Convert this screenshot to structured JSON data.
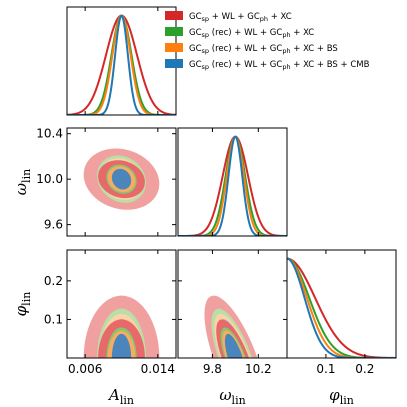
{
  "chart_data": {
    "type": "triangle-corner",
    "parameters": [
      {
        "key": "A",
        "symbol": "A",
        "subscript": "lin",
        "range": [
          0.004,
          0.016
        ],
        "ticks": [
          0.006,
          0.014
        ],
        "tick_labels": [
          "0.006",
          "0.014"
        ]
      },
      {
        "key": "omega",
        "symbol": "ω",
        "subscript": "lin",
        "range": [
          9.5,
          10.45
        ],
        "ticks": [
          9.8,
          10.2
        ],
        "tick_labels": [
          "9.8",
          "10.2"
        ],
        "y_ticks": [
          9.6,
          10.0,
          10.4
        ],
        "y_tick_labels": [
          "9.6",
          "10.0",
          "10.4"
        ]
      },
      {
        "key": "phi",
        "symbol": "φ",
        "subscript": "lin",
        "range": [
          0.0,
          0.28
        ],
        "ticks": [
          0.1,
          0.2
        ],
        "tick_labels": [
          "0.1",
          "0.2"
        ],
        "y_ticks": [
          0.1,
          0.2
        ],
        "y_tick_labels": [
          "0.1",
          "0.2"
        ]
      }
    ],
    "series": [
      {
        "name": "GCsp + WL + GCph + XC",
        "color": "#d62728",
        "fill_outer": "#f0a09f",
        "fill_inner": "#e8696a",
        "A": {
          "mean": 0.01,
          "sigma": 0.0017
        },
        "omega": {
          "mean": 10.0,
          "sigma": 0.11
        },
        "phi": {
          "scale": 0.12
        },
        "corr": {
          "A_omega": -0.15,
          "A_phi": 0.0,
          "omega_phi": -0.7
        }
      },
      {
        "name": "GCsp (rec) + WL + GCph + XC",
        "color": "#2ca02c",
        "fill_outer": "#b8dfa8",
        "fill_inner": "#84c772",
        "A": {
          "mean": 0.01,
          "sigma": 0.0011
        },
        "omega": {
          "mean": 10.0,
          "sigma": 0.085
        },
        "phi": {
          "scale": 0.095
        },
        "corr": {
          "A_omega": -0.15,
          "A_phi": 0.0,
          "omega_phi": -0.7
        }
      },
      {
        "name": "GCsp (rec) + WL + GCph + XC + BS",
        "color": "#ff7f0e",
        "fill_outer": "#fcd3a5",
        "fill_inner": "#f9ac60",
        "A": {
          "mean": 0.01,
          "sigma": 0.001
        },
        "omega": {
          "mean": 10.0,
          "sigma": 0.075
        },
        "phi": {
          "scale": 0.085
        },
        "corr": {
          "A_omega": -0.15,
          "A_phi": 0.0,
          "omega_phi": -0.7
        }
      },
      {
        "name": "GCsp (rec) + WL + GCph + XC + BS + CMB",
        "color": "#1f77b4",
        "fill_outer": "#a9c6df",
        "fill_inner": "#4a86bb",
        "A": {
          "mean": 0.01,
          "sigma": 0.0007
        },
        "omega": {
          "mean": 10.0,
          "sigma": 0.06
        },
        "phi": {
          "scale": 0.075
        },
        "corr": {
          "A_omega": -0.15,
          "A_phi": 0.0,
          "omega_phi": -0.7
        }
      }
    ],
    "legend": {
      "placement": "top-right",
      "entries": [
        {
          "pre": "GC",
          "sub1": "sp",
          "mid": " + WL + GC",
          "sub2": "ph",
          "post": " + XC"
        },
        {
          "pre": "GC",
          "sub1": "sp",
          "mid": " (rec) + WL + GC",
          "sub2": "ph",
          "post": " + XC"
        },
        {
          "pre": "GC",
          "sub1": "sp",
          "mid": " (rec) + WL + GC",
          "sub2": "ph",
          "post": " + XC + BS"
        },
        {
          "pre": "GC",
          "sub1": "sp",
          "mid": " (rec) + WL + GC",
          "sub2": "ph",
          "post": " + XC + BS + CMB"
        }
      ]
    },
    "grid": false
  }
}
